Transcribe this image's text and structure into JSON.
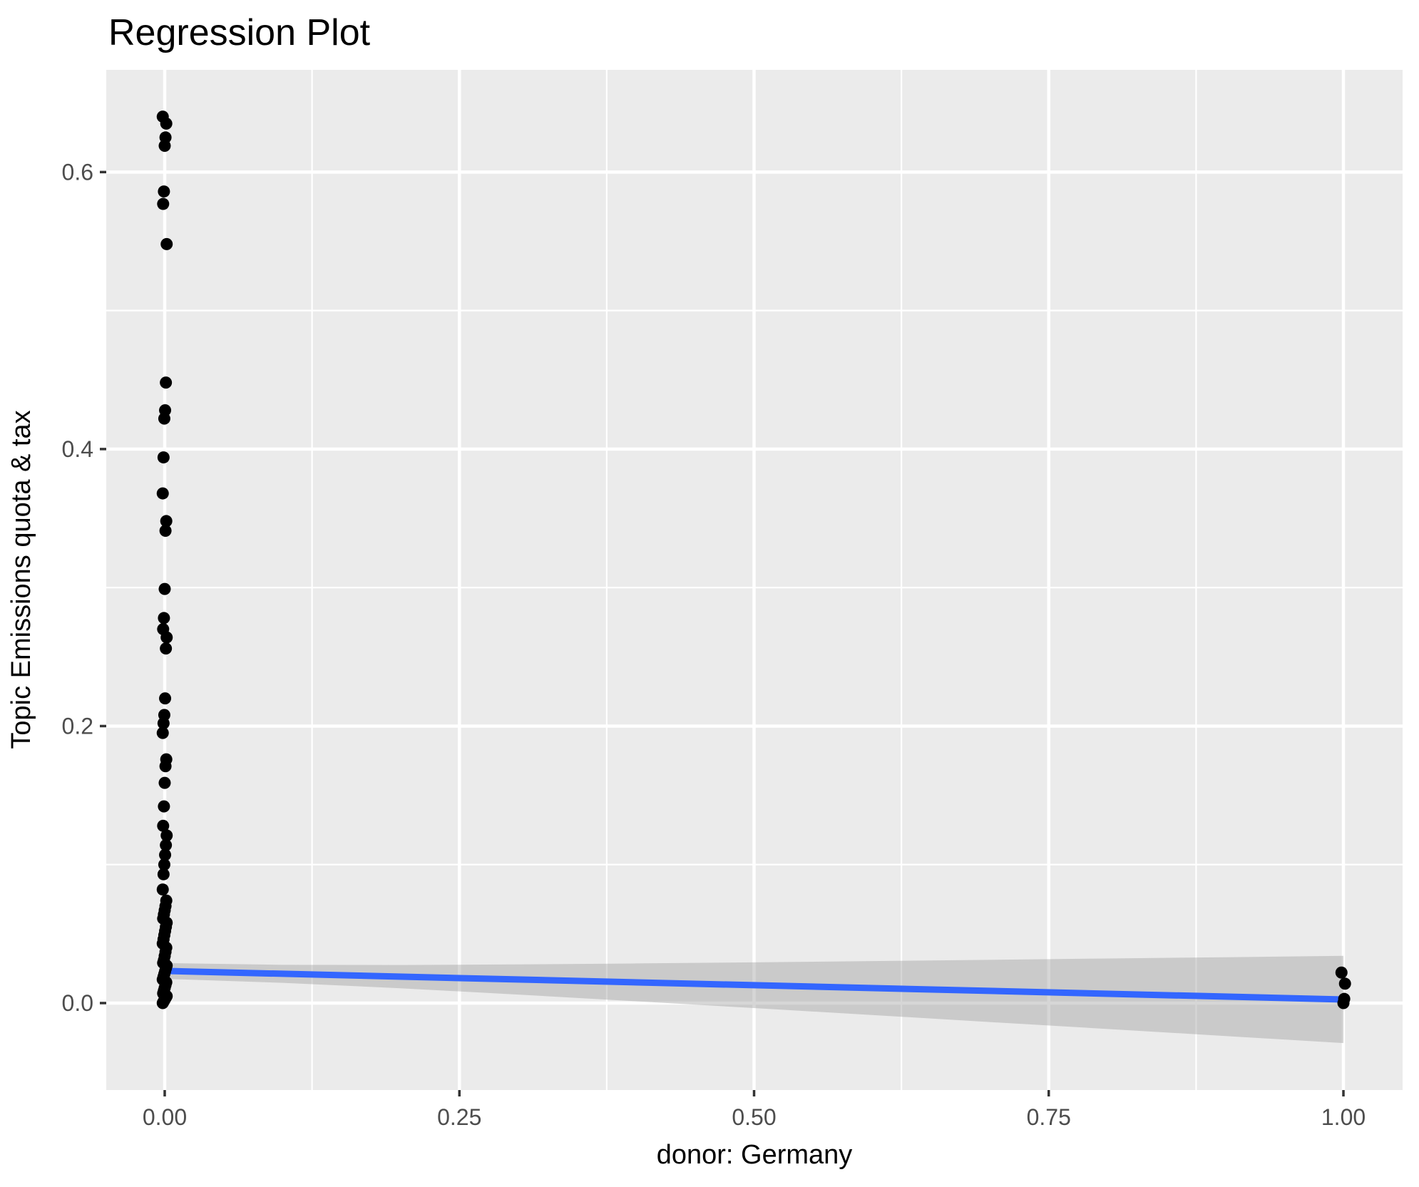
{
  "chart_data": {
    "type": "scatter",
    "title": "Regression Plot",
    "xlabel": "donor: Germany",
    "ylabel": "Topic Emissions quota & tax",
    "xlim": [
      -0.0496,
      1.0502
    ],
    "ylim": [
      -0.0628,
      0.6738
    ],
    "grid": "on",
    "legend": "none",
    "x_ticks": [
      {
        "value": 0.0,
        "label": "0.00"
      },
      {
        "value": 0.25,
        "label": "0.25"
      },
      {
        "value": 0.5,
        "label": "0.50"
      },
      {
        "value": 0.75,
        "label": "0.75"
      },
      {
        "value": 1.0,
        "label": "1.00"
      }
    ],
    "y_ticks": [
      {
        "value": 0.0,
        "label": "0.0"
      },
      {
        "value": 0.2,
        "label": "0.2"
      },
      {
        "value": 0.4,
        "label": "0.4"
      },
      {
        "value": 0.6,
        "label": "0.6"
      }
    ],
    "x_minor_ticks": [
      0.125,
      0.375,
      0.625,
      0.875
    ],
    "y_minor_ticks": [
      0.1,
      0.3,
      0.5
    ],
    "series": [
      {
        "name": "donor = 0",
        "x": 0,
        "values": [
          0.64,
          0.635,
          0.625,
          0.619,
          0.586,
          0.577,
          0.548,
          0.448,
          0.428,
          0.422,
          0.394,
          0.368,
          0.348,
          0.341,
          0.299,
          0.278,
          0.27,
          0.264,
          0.256,
          0.22,
          0.208,
          0.202,
          0.195,
          0.176,
          0.171,
          0.159,
          0.142,
          0.128,
          0.121,
          0.114,
          0.107,
          0.1,
          0.093,
          0.082,
          0.074,
          0.07,
          0.067,
          0.064,
          0.061,
          0.058,
          0.055,
          0.052,
          0.049,
          0.046,
          0.043,
          0.04,
          0.037,
          0.034,
          0.031,
          0.029,
          0.027,
          0.025,
          0.023,
          0.021,
          0.019,
          0.017,
          0.015,
          0.013,
          0.011,
          0.009,
          0.007,
          0.005,
          0.004,
          0.003,
          0.002,
          0.001,
          0.0
        ]
      },
      {
        "name": "donor = 1",
        "x": 1,
        "values": [
          0.022,
          0.014,
          0.003,
          0.0
        ]
      }
    ],
    "regression_line": {
      "x": [
        0,
        1
      ],
      "y": [
        0.0232,
        0.0026
      ]
    },
    "confidence_band": {
      "x": [
        0.0,
        0.1,
        0.2,
        0.3,
        0.4,
        0.5,
        0.6,
        0.7,
        0.8,
        0.9,
        1.0
      ],
      "upper": [
        0.0289,
        0.0276,
        0.0275,
        0.0279,
        0.0286,
        0.0294,
        0.0303,
        0.0312,
        0.0322,
        0.0331,
        0.0341
      ],
      "lower": [
        0.0175,
        0.0146,
        0.0107,
        0.0061,
        0.0013,
        -0.0036,
        -0.0086,
        -0.0137,
        -0.0187,
        -0.0238,
        -0.0289
      ]
    },
    "colors": {
      "panel_background": "#EBEBEB",
      "gridline": "#FFFFFF",
      "point": "#000000",
      "regression_line": "#3366FF",
      "confidence_band_fill": "#999999",
      "confidence_band_opacity": 0.4,
      "tick_label": "#4D4D4D",
      "tick_mark": "#333333",
      "title_text": "#000000"
    }
  }
}
